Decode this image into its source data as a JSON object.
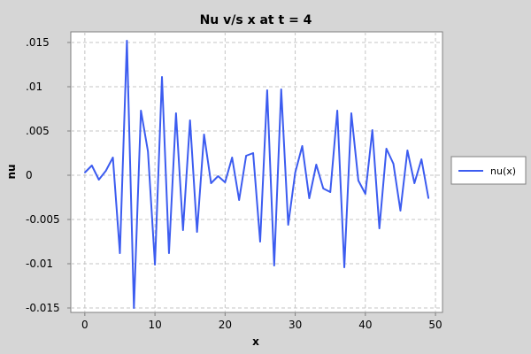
{
  "chart_data": {
    "type": "line",
    "title": "Nu v/s x at t = 4",
    "xlabel": "x",
    "ylabel": "nu",
    "xlim": [
      -2,
      51
    ],
    "ylim": [
      -0.0155,
      0.0162
    ],
    "x_ticks": [
      0,
      10,
      20,
      30,
      40,
      50
    ],
    "x_tick_labels": [
      "0",
      "10",
      "20",
      "30",
      "40",
      "50"
    ],
    "y_ticks": [
      0.015,
      0.01,
      0.005,
      0,
      -0.005,
      -0.01,
      -0.015
    ],
    "y_tick_labels": [
      ".015",
      ".01",
      ".005",
      "0",
      "-0.005",
      "-0.01",
      "-0.015"
    ],
    "grid": true,
    "legend_position": "right",
    "series": [
      {
        "name": "nu(x)",
        "color": "#3c5cf0",
        "x": [
          0,
          1,
          2,
          3,
          4,
          5,
          6,
          7,
          8,
          9,
          10,
          11,
          12,
          13,
          14,
          15,
          16,
          17,
          18,
          19,
          20,
          21,
          22,
          23,
          24,
          25,
          26,
          27,
          28,
          29,
          30,
          31,
          32,
          33,
          34,
          35,
          36,
          37,
          38,
          39,
          40,
          41,
          42,
          43,
          44,
          45,
          46,
          47,
          48,
          49
        ],
        "y": [
          0.0003,
          0.0011,
          -0.0005,
          0.0005,
          0.002,
          -0.0088,
          0.0152,
          -0.015,
          0.0073,
          0.0027,
          -0.0101,
          0.0111,
          -0.0088,
          0.007,
          -0.0062,
          0.0062,
          -0.0064,
          0.0046,
          -0.0009,
          -0.0001,
          -0.0008,
          0.002,
          -0.0028,
          0.0022,
          0.0025,
          -0.0075,
          0.0096,
          -0.0102,
          0.0097,
          -0.0056,
          0.0003,
          0.0033,
          -0.0026,
          0.0012,
          -0.0015,
          -0.0019,
          0.0073,
          -0.0104,
          0.007,
          -0.0006,
          -0.0021,
          0.0051,
          -0.006,
          0.003,
          0.0013,
          -0.004,
          0.0028,
          -0.0009,
          0.0018,
          -0.0026
        ]
      }
    ]
  }
}
